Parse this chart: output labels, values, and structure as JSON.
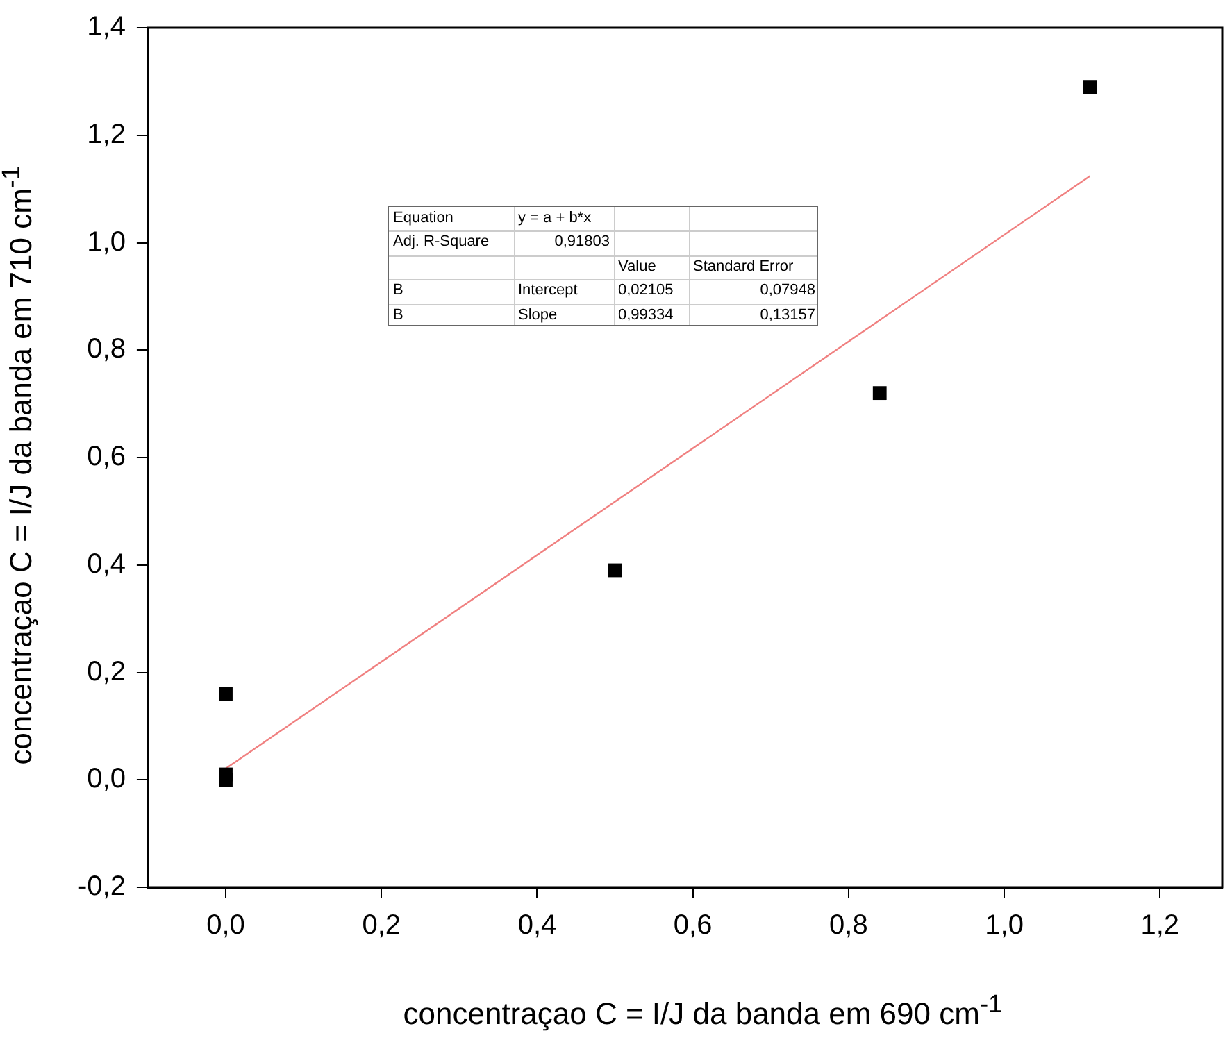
{
  "chart_data": {
    "type": "scatter",
    "xlabel": "concentraçao C = I/J da banda em 690 cm$^{-1}$",
    "ylabel": "concentraçao C = I/J da banda em 710 cm$^{-1}$",
    "xlim": [
      -0.1,
      1.28
    ],
    "xticks": [
      {
        "value": 0,
        "label": "0,0"
      },
      {
        "value": 0.2,
        "label": "0,2"
      },
      {
        "value": 0.4,
        "label": "0,4"
      },
      {
        "value": 0.6,
        "label": "0,6"
      },
      {
        "value": 0.8,
        "label": "0,8"
      },
      {
        "value": 1,
        "label": "1,0"
      },
      {
        "value": 1.2,
        "label": "1,2"
      }
    ],
    "ylim": [
      -0.2,
      1.4
    ],
    "yticks": [
      {
        "value": -0.2,
        "label": "-0,2"
      },
      {
        "value": 0,
        "label": "0,0"
      },
      {
        "value": 0.2,
        "label": "0,2"
      },
      {
        "value": 0.4,
        "label": "0,4"
      },
      {
        "value": 0.6,
        "label": "0,6"
      },
      {
        "value": 0.8,
        "label": "0,8"
      },
      {
        "value": 1,
        "label": "1,0"
      },
      {
        "value": 1.2,
        "label": "1,2"
      },
      {
        "value": 1.4,
        "label": "1,4"
      }
    ],
    "series": [
      {
        "type": "scatter",
        "color": "#000000",
        "marker": "square",
        "x": [
          0,
          0,
          0,
          0.5,
          0.84,
          1.11
        ],
        "values": [
          0,
          0.01,
          0.16,
          0.39,
          0.72,
          1.29
        ]
      },
      {
        "type": "line",
        "color": "#f08080",
        "marker": "none",
        "line_style": "solid",
        "x": [
          0,
          1.11
        ],
        "values": [
          0.021,
          1.124
        ]
      }
    ],
    "annotations": [
      "Equation",
      "y = a + b*x",
      "Adj. R-Square",
      "0,91803",
      "Value",
      "Standard Error",
      "B",
      "Intercept",
      "0,02105",
      "0,07948",
      "B",
      "Slope",
      "0,99334",
      "0,13157"
    ],
    "grid": false,
    "legend": false
  }
}
